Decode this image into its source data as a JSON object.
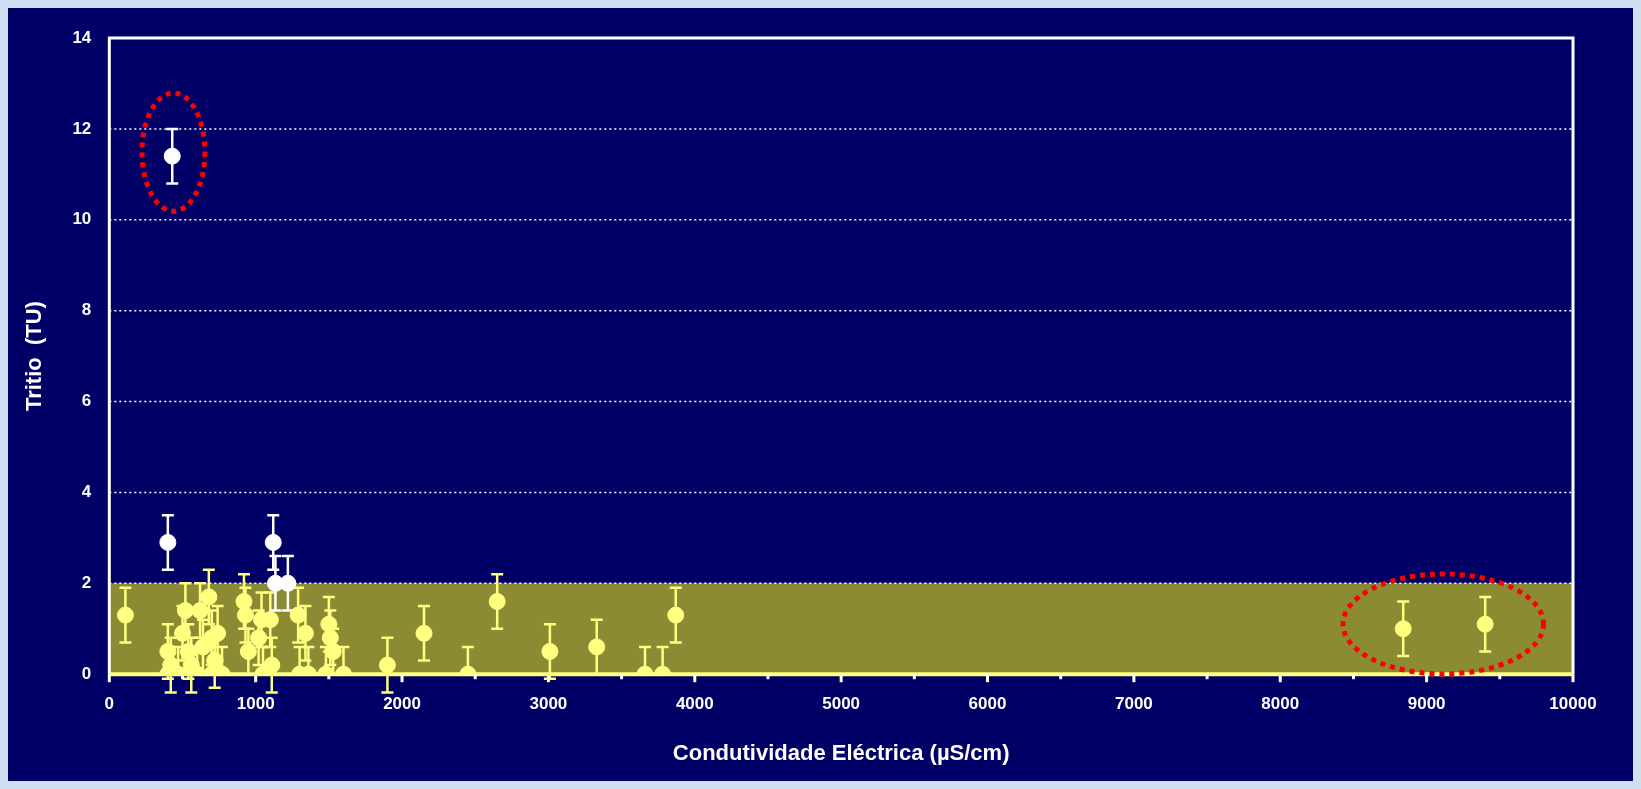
{
  "chart_data": {
    "type": "scatter",
    "xlabel": "Condutividade Eléctrica (µS/cm)",
    "ylabel": "Tritio  (TU)",
    "xlim": [
      0,
      10000
    ],
    "ylim": [
      0,
      14
    ],
    "xticks": [
      0,
      1000,
      2000,
      3000,
      4000,
      5000,
      6000,
      7000,
      8000,
      9000,
      10000
    ],
    "yticks": [
      0,
      2,
      4,
      6,
      8,
      10,
      12,
      14
    ],
    "grid": "y",
    "legend": false,
    "marker": "circle",
    "bands": [
      {
        "axis": "y",
        "from": 0,
        "to": 2,
        "color": "#8b8b33"
      }
    ],
    "series": [
      {
        "color": "#ffff80",
        "x": [
          110,
          400,
          420,
          400,
          470,
          500,
          520,
          540,
          560,
          600,
          620,
          640,
          680,
          700,
          720,
          740,
          700,
          770,
          920,
          930,
          950,
          1020,
          1040,
          1050,
          1100,
          1110,
          1290,
          1300,
          1340,
          1360,
          1500,
          1510,
          1480,
          1530,
          1600,
          1900,
          2150,
          2450,
          2650,
          3010,
          3330,
          3660,
          3780,
          3870,
          8840,
          9400
        ],
        "values": [
          1.3,
          0.5,
          0.2,
          0,
          0,
          0.9,
          1.4,
          0.5,
          0.2,
          0,
          1.4,
          0.6,
          1.7,
          0.8,
          0.3,
          0.9,
          0,
          0,
          1.6,
          1.3,
          0.5,
          0.8,
          1.2,
          0,
          1.2,
          0.2,
          1.3,
          0,
          0.9,
          0,
          1.1,
          0.8,
          0,
          0.5,
          0,
          0.2,
          0.9,
          0,
          1.6,
          0.5,
          0.6,
          0,
          0,
          1.3,
          1.0,
          1.1
        ],
        "errors": [
          0.6,
          0.6,
          0.6,
          [
            0,
            0.6
          ],
          [
            0,
            0.6
          ],
          0.6,
          0.6,
          0.6,
          0.6,
          [
            0,
            0.6
          ],
          0.6,
          0.6,
          0.6,
          0.6,
          0.6,
          0.6,
          [
            0,
            0.6
          ],
          [
            0,
            0.6
          ],
          0.6,
          0.6,
          0.5,
          0.6,
          0.6,
          [
            0,
            0.6
          ],
          0.6,
          0.6,
          0.6,
          [
            0,
            0.6
          ],
          0.6,
          [
            0,
            0.6
          ],
          0.6,
          0.6,
          [
            0,
            0.6
          ],
          0.5,
          [
            0,
            0.6
          ],
          0.6,
          0.6,
          [
            0,
            0.6
          ],
          0.6,
          0.6,
          0.6,
          [
            0,
            0.6
          ],
          [
            0,
            0.6
          ],
          0.6,
          0.6,
          0.6
        ]
      },
      {
        "color": "#ffffff",
        "x": [
          430,
          400,
          1120,
          1135,
          1220
        ],
        "values": [
          11.4,
          2.9,
          2.9,
          2.0,
          2.0
        ],
        "errors": [
          0.6,
          0.6,
          0.6,
          0.6,
          0.6
        ]
      }
    ]
  }
}
